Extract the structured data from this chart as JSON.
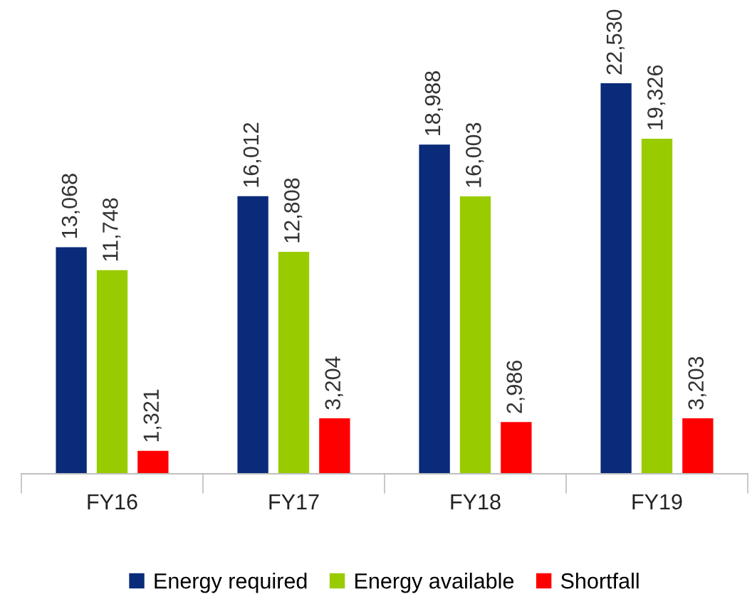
{
  "chart_data": {
    "type": "bar",
    "relative": false,
    "categories": [
      "FY16",
      "FY17",
      "FY18",
      "FY19"
    ],
    "series": [
      {
        "name": "Energy required",
        "color": "#0a2a7a",
        "values": [
          13068,
          16012,
          18988,
          22530
        ],
        "value_labels": [
          "13,068",
          "16,012",
          "18,988",
          "22,530"
        ]
      },
      {
        "name": "Energy available",
        "color": "#99cc00",
        "values": [
          11748,
          12808,
          16003,
          19326
        ],
        "value_labels": [
          "11,748",
          "12,808",
          "16,003",
          "19,326"
        ]
      },
      {
        "name": "Shortfall",
        "color": "#ff0000",
        "values": [
          1321,
          3204,
          2986,
          3203
        ],
        "value_labels": [
          "1,321",
          "3,204",
          "2,986",
          "3,203"
        ]
      }
    ],
    "legend": "bottom",
    "grid": false
  }
}
